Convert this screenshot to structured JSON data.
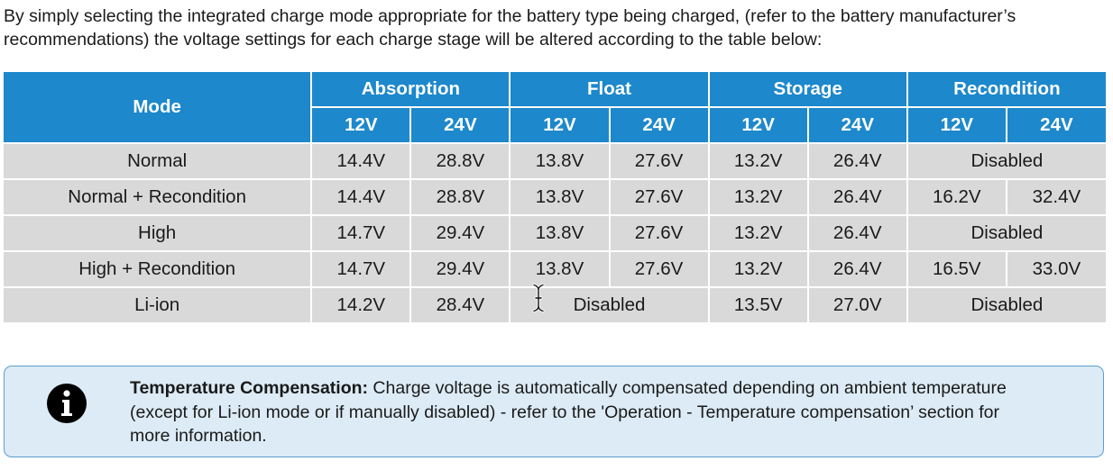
{
  "intro_text": "By simply selecting the integrated charge mode appropriate for the battery type being charged, (refer to the battery manufacturer’s recommendations) the voltage settings for each charge stage will be altered according to the table below:",
  "table": {
    "mode_header": "Mode",
    "groups": [
      "Absorption",
      "Float",
      "Storage",
      "Recondition"
    ],
    "subheaders": [
      "12V",
      "24V",
      "12V",
      "24V",
      "12V",
      "24V",
      "12V",
      "24V"
    ],
    "rows": [
      {
        "mode": "Normal",
        "absorption": [
          "14.4V",
          "28.8V"
        ],
        "float": [
          "13.8V",
          "27.6V"
        ],
        "storage": [
          "13.2V",
          "26.4V"
        ],
        "recondition": "Disabled"
      },
      {
        "mode": "Normal + Recondition",
        "absorption": [
          "14.4V",
          "28.8V"
        ],
        "float": [
          "13.8V",
          "27.6V"
        ],
        "storage": [
          "13.2V",
          "26.4V"
        ],
        "recondition": [
          "16.2V",
          "32.4V"
        ]
      },
      {
        "mode": "High",
        "absorption": [
          "14.7V",
          "29.4V"
        ],
        "float": [
          "13.8V",
          "27.6V"
        ],
        "storage": [
          "13.2V",
          "26.4V"
        ],
        "recondition": "Disabled"
      },
      {
        "mode": "High + Recondition",
        "absorption": [
          "14.7V",
          "29.4V"
        ],
        "float": [
          "13.8V",
          "27.6V"
        ],
        "storage": [
          "13.2V",
          "26.4V"
        ],
        "recondition": [
          "16.5V",
          "33.0V"
        ]
      },
      {
        "mode": "Li-ion",
        "absorption": [
          "14.2V",
          "28.4V"
        ],
        "float": "Disabled",
        "storage": [
          "13.5V",
          "27.0V"
        ],
        "recondition": "Disabled"
      }
    ]
  },
  "note": {
    "icon": "info-icon",
    "heading": "Temperature Compensation:",
    "body": " Charge voltage is automatically compensated depending on ambient temperature (except for Li-ion mode or if manually disabled) - refer to the 'Operation - Temperature compensation’ section for more information."
  },
  "colors": {
    "header_blue": "#1d88cb",
    "row_gray": "#d9d9d9",
    "note_background": "#dcebf5",
    "note_border": "#5a9fd0"
  }
}
